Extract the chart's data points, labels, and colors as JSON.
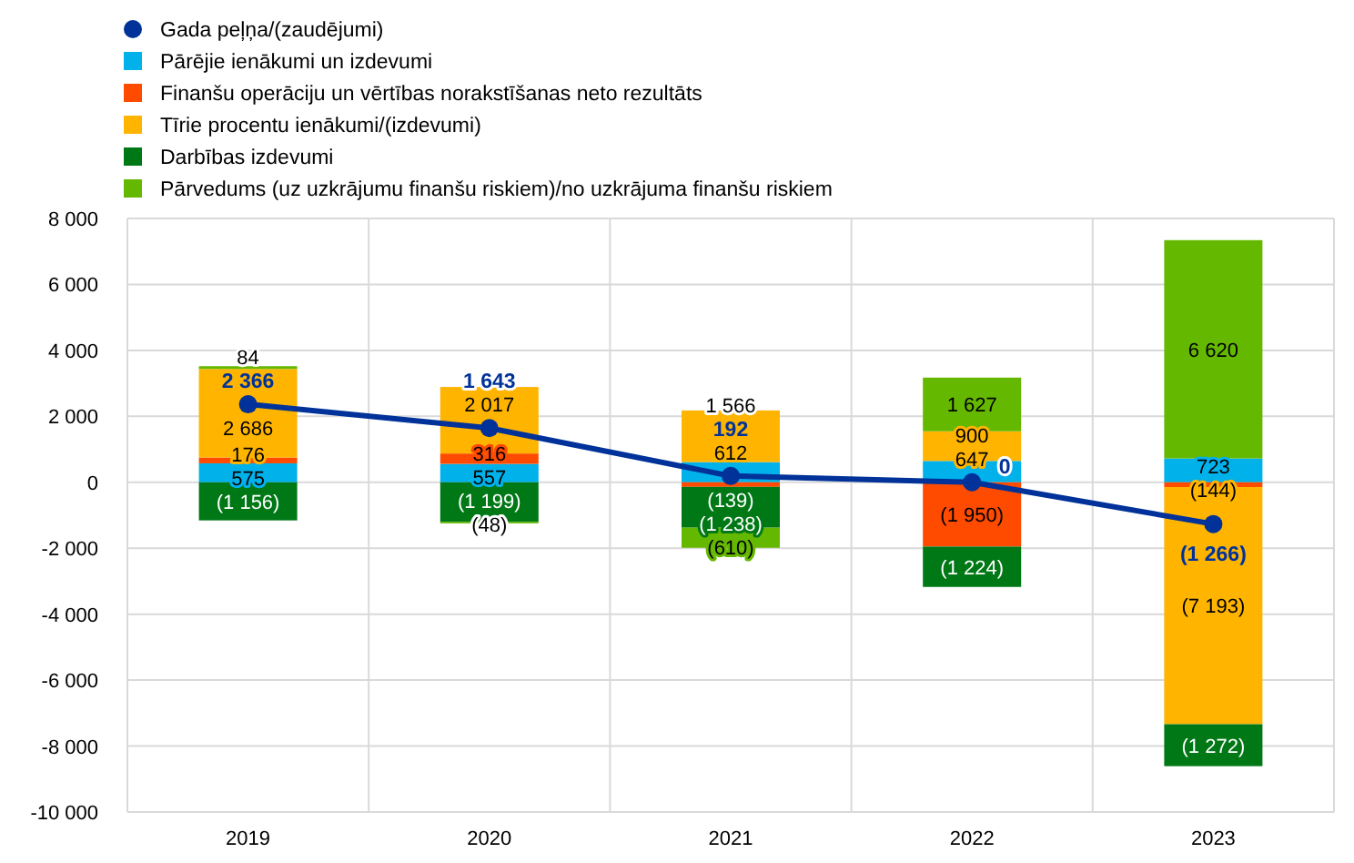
{
  "chart_data": {
    "type": "bar",
    "stacked": true,
    "categories": [
      "2019",
      "2020",
      "2021",
      "2022",
      "2023"
    ],
    "ylim": [
      -10000,
      8000
    ],
    "yticks": [
      {
        "value": -10000,
        "label": "-10 000"
      },
      {
        "value": -8000,
        "label": "-8 000"
      },
      {
        "value": -6000,
        "label": "-6 000"
      },
      {
        "value": -4000,
        "label": "-4 000"
      },
      {
        "value": -2000,
        "label": "-2 000"
      },
      0,
      {
        "value": 2000,
        "label": "2 000"
      },
      {
        "value": 4000,
        "label": "4 000"
      },
      {
        "value": 6000,
        "label": "6 000"
      },
      {
        "value": 8000,
        "label": "8 000"
      }
    ],
    "grid": true,
    "legend": "top left",
    "series": [
      {
        "name": "Gada peļņa/(zaudējumi)",
        "type": "line",
        "marker": "circle",
        "color": "#003299",
        "values": [
          2366,
          1643,
          192,
          0,
          -1266
        ],
        "value_labels": [
          "2 366",
          "1 643",
          "192",
          "0",
          "(1 266)"
        ]
      },
      {
        "name": "Pārējie ienākumi un izdevumi",
        "color": "#00b1ea",
        "values": [
          575,
          557,
          612,
          647,
          723
        ],
        "value_labels": [
          "575",
          "557",
          "612",
          "647",
          "723"
        ]
      },
      {
        "name": "Finanšu operāciju un vērtības norakstīšanas neto rezultāts",
        "color": "#ff4b00",
        "values": [
          176,
          316,
          -139,
          -1950,
          -144
        ],
        "value_labels": [
          "176",
          "316",
          "(139)",
          "(1 950)",
          "(144)"
        ]
      },
      {
        "name": "Tīrie procentu ienākumi/(izdevumi)",
        "color": "#ffb400",
        "values": [
          2686,
          2017,
          1566,
          900,
          -7193
        ],
        "value_labels": [
          "2 686",
          "2 017",
          "1 566",
          "900",
          "(7 193)"
        ]
      },
      {
        "name": "Darbības izdevumi",
        "color": "#007816",
        "values": [
          -1156,
          -1199,
          -1238,
          -1224,
          -1272
        ],
        "value_labels": [
          "(1 156)",
          "(1 199)",
          "(1 238)",
          "(1 224)",
          "(1 272)"
        ]
      },
      {
        "name": "Pārvedums (uz uzkrājumu finanšu riskiem)/no uzkrājuma finanšu riskiem",
        "color": "#65b800",
        "values": [
          84,
          -48,
          -610,
          1627,
          6620
        ],
        "value_labels": [
          "84",
          "(48)",
          "(610)",
          "1 627",
          "6 620"
        ]
      }
    ]
  }
}
